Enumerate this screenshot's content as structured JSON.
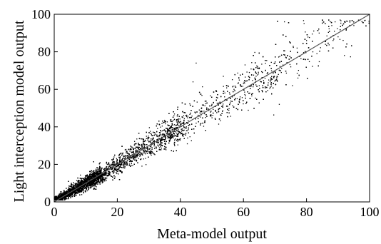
{
  "chart_data": {
    "type": "scatter",
    "title": "",
    "xlabel": "Meta-model output",
    "ylabel": "Light interception model output",
    "xlim": [
      0,
      100
    ],
    "ylim": [
      0,
      100
    ],
    "x_ticks": [
      0,
      20,
      40,
      60,
      80,
      100
    ],
    "y_ticks": [
      0,
      20,
      40,
      60,
      80,
      100
    ],
    "x_tick_labels": [
      "0",
      "20",
      "40",
      "60",
      "80",
      "100"
    ],
    "y_tick_labels": [
      "0",
      "20",
      "40",
      "60",
      "80",
      "100"
    ],
    "grid": false,
    "legend": "none",
    "reference_line": {
      "type": "identity",
      "from": [
        0,
        0
      ],
      "to": [
        100,
        100
      ]
    },
    "series": [
      {
        "marker": "dot",
        "approximate_point_count": 7000,
        "distribution": "dense cloud along the 1:1 line, densest from 0 to 20, spread widening with value; points between 70 and 100 mostly lie above the line",
        "points": [
          [
            1,
            2
          ],
          [
            2,
            4
          ],
          [
            3,
            2
          ],
          [
            4,
            6
          ],
          [
            5,
            3
          ],
          [
            6,
            7
          ],
          [
            7,
            5
          ],
          [
            8,
            10
          ],
          [
            9,
            7
          ],
          [
            10,
            12
          ],
          [
            11,
            9
          ],
          [
            12,
            14
          ],
          [
            14,
            12
          ],
          [
            15,
            17
          ],
          [
            16,
            14
          ],
          [
            18,
            20
          ],
          [
            19,
            16
          ],
          [
            20,
            22
          ],
          [
            22,
            19
          ],
          [
            24,
            27
          ],
          [
            25,
            23
          ],
          [
            27,
            29
          ],
          [
            28,
            25
          ],
          [
            30,
            32
          ],
          [
            31,
            28
          ],
          [
            33,
            35
          ],
          [
            35,
            31
          ],
          [
            36,
            38
          ],
          [
            38,
            35
          ],
          [
            40,
            42
          ],
          [
            41,
            38
          ],
          [
            43,
            45
          ],
          [
            45,
            42
          ],
          [
            46,
            49
          ],
          [
            48,
            45
          ],
          [
            50,
            52
          ],
          [
            52,
            48
          ],
          [
            54,
            56
          ],
          [
            55,
            51
          ],
          [
            57,
            60
          ],
          [
            58,
            55
          ],
          [
            60,
            63
          ],
          [
            62,
            58
          ],
          [
            64,
            67
          ],
          [
            65,
            62
          ],
          [
            67,
            70
          ],
          [
            68,
            65
          ],
          [
            70,
            74
          ],
          [
            72,
            69
          ],
          [
            74,
            78
          ],
          [
            75,
            72
          ],
          [
            77,
            82
          ],
          [
            79,
            76
          ],
          [
            80,
            86
          ],
          [
            82,
            80
          ],
          [
            84,
            90
          ],
          [
            86,
            84
          ],
          [
            88,
            94
          ],
          [
            90,
            88
          ],
          [
            92,
            96
          ],
          [
            95,
            94
          ],
          [
            97,
            97
          ],
          [
            45,
            74
          ],
          [
            44,
            64
          ],
          [
            85,
            97
          ],
          [
            73,
            96
          ]
        ]
      }
    ]
  }
}
